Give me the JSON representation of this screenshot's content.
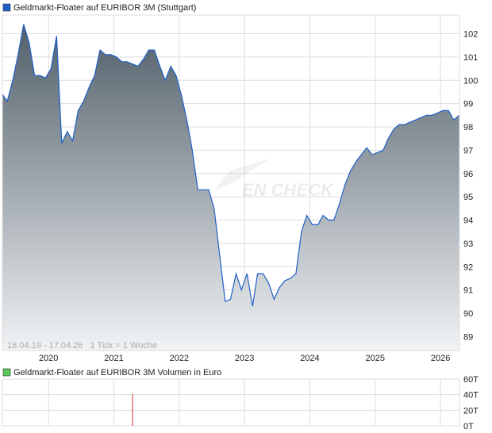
{
  "chart_data": [
    {
      "type": "area",
      "legend": "Geldmarkt-Floater auf EURIBOR 3M (Stuttgart)",
      "legend_placement": "top-left",
      "info_text": "18.04.19 - 17.04.26   1 Tick = 1 Woche",
      "watermark": "EN CHECK",
      "x_tick_labels": [
        "2020",
        "2021",
        "2022",
        "2023",
        "2024",
        "2025",
        "2026"
      ],
      "y_tick_labels": [
        "102",
        "101",
        "100",
        "99",
        "98",
        "97",
        "96",
        "95",
        "94",
        "93",
        "92",
        "91",
        "90",
        "89"
      ],
      "ylim": [
        88.4,
        102.8
      ],
      "xlim": [
        "2019-04-18",
        "2026-04-17"
      ],
      "grid": true,
      "colors": {
        "line": "#1f5fc8",
        "fill_top": "#4f5d67",
        "fill_bottom": "#f1f3f5",
        "grid": "#dddddd"
      },
      "x": [
        "2019-04",
        "2019-05",
        "2019-06",
        "2019-07",
        "2019-08",
        "2019-09",
        "2019-10",
        "2019-11",
        "2019-12",
        "2020-01",
        "2020-02",
        "2020-03",
        "2020-04",
        "2020-05",
        "2020-06",
        "2020-07",
        "2020-08",
        "2020-09",
        "2020-10",
        "2020-11",
        "2020-12",
        "2021-01",
        "2021-02",
        "2021-03",
        "2021-04",
        "2021-05",
        "2021-06",
        "2021-07",
        "2021-08",
        "2021-09",
        "2021-10",
        "2021-11",
        "2021-12",
        "2022-01",
        "2022-02",
        "2022-03",
        "2022-04",
        "2022-05",
        "2022-06",
        "2022-07",
        "2022-08",
        "2022-09",
        "2022-10",
        "2022-11",
        "2022-12",
        "2023-01",
        "2023-02",
        "2023-03",
        "2023-04",
        "2023-05",
        "2023-06",
        "2023-07",
        "2023-08",
        "2023-09",
        "2023-10",
        "2023-11",
        "2023-12",
        "2024-01",
        "2024-02",
        "2024-03",
        "2024-04",
        "2024-05",
        "2024-06",
        "2024-07",
        "2024-08",
        "2024-09",
        "2024-10",
        "2024-11",
        "2024-12",
        "2025-01",
        "2025-02",
        "2025-03",
        "2025-04",
        "2025-05",
        "2025-06",
        "2025-07",
        "2025-08",
        "2025-09",
        "2025-10",
        "2025-11",
        "2025-12",
        "2026-01",
        "2026-02",
        "2026-03",
        "2026-04"
      ],
      "values": [
        99.4,
        99.1,
        100.0,
        101.1,
        102.4,
        101.6,
        100.2,
        100.2,
        100.1,
        100.5,
        101.9,
        97.3,
        97.8,
        97.4,
        98.7,
        99.1,
        99.7,
        100.2,
        101.3,
        101.1,
        101.1,
        101.0,
        100.8,
        100.8,
        100.7,
        100.6,
        100.9,
        101.3,
        101.3,
        100.6,
        100.0,
        100.6,
        100.2,
        99.3,
        98.2,
        97.0,
        95.3,
        95.3,
        95.3,
        94.5,
        92.5,
        90.5,
        90.6,
        91.7,
        91.0,
        91.7,
        90.3,
        91.7,
        91.7,
        91.3,
        90.6,
        91.1,
        91.4,
        91.5,
        91.7,
        93.5,
        94.2,
        93.8,
        93.8,
        94.2,
        94.0,
        94.0,
        94.7,
        95.5,
        96.1,
        96.5,
        96.8,
        97.1,
        96.8,
        96.9,
        97.0,
        97.5,
        97.9,
        98.1,
        98.1,
        98.2,
        98.3,
        98.4,
        98.5,
        98.5,
        98.6,
        98.7,
        98.7,
        98.3,
        98.5
      ]
    },
    {
      "type": "bar",
      "legend": "Geldmarkt-Floater auf EURIBOR 3M Volumen in Euro",
      "legend_placement": "top-left",
      "y_tick_labels": [
        "60T",
        "40T",
        "20T",
        "0T"
      ],
      "ylim": [
        0,
        60000
      ],
      "grid": true,
      "colors": {
        "bar": "#e03030",
        "legend": "#5cc85c"
      },
      "x": [
        "2021-04"
      ],
      "values": [
        41000
      ]
    }
  ]
}
